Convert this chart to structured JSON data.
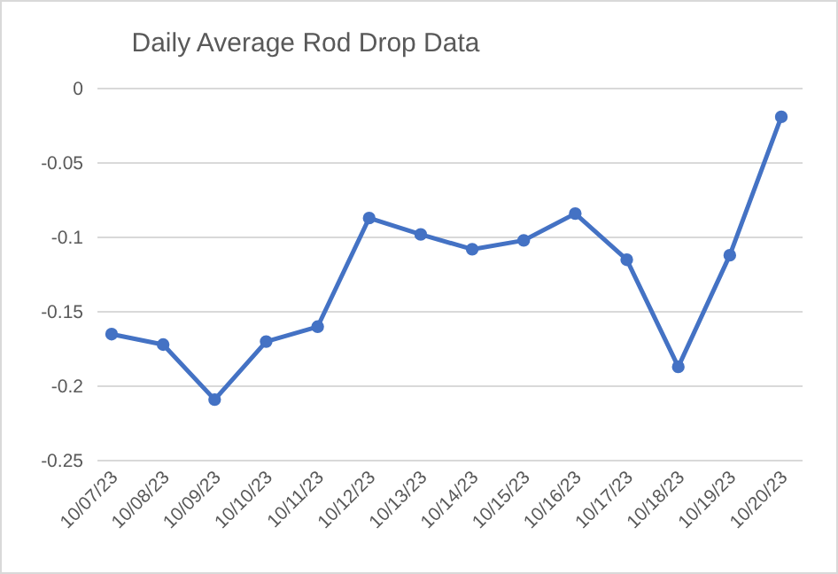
{
  "chart_data": {
    "type": "line",
    "title": "Daily Average Rod Drop Data",
    "categories": [
      "10/07/23",
      "10/08/23",
      "10/09/23",
      "10/10/23",
      "10/11/23",
      "10/12/23",
      "10/13/23",
      "10/14/23",
      "10/15/23",
      "10/16/23",
      "10/17/23",
      "10/18/23",
      "10/19/23",
      "10/20/23"
    ],
    "series": [
      {
        "color": "#4472c4",
        "values": [
          -0.165,
          -0.172,
          -0.209,
          -0.17,
          -0.16,
          -0.087,
          -0.098,
          -0.108,
          -0.102,
          -0.084,
          -0.115,
          -0.187,
          -0.112,
          -0.019
        ]
      }
    ],
    "ylim": [
      -0.25,
      0
    ],
    "yticks": [
      -0.25,
      -0.2,
      -0.15,
      -0.1,
      -0.05,
      0
    ],
    "grid": "y",
    "marker": "circle",
    "line_style": "solid"
  }
}
